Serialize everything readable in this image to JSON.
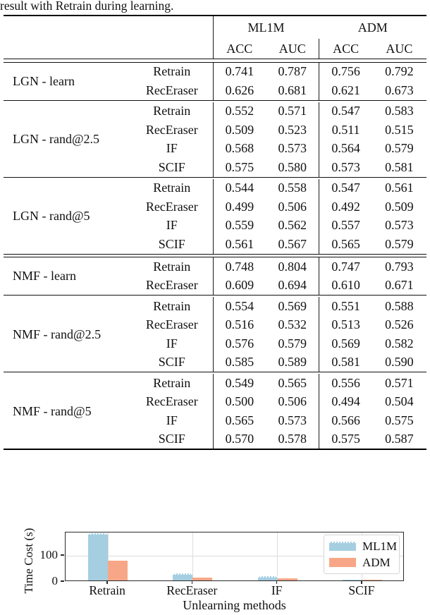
{
  "caption": "result with Retrain during learning.",
  "table": {
    "col_groups": [
      {
        "label": "ML1M"
      },
      {
        "label": "ADM"
      }
    ],
    "sub_headers": [
      "ACC",
      "AUC",
      "ACC",
      "AUC"
    ],
    "groups": [
      {
        "label": "LGN - learn",
        "rows": [
          {
            "method": "Retrain",
            "values": [
              "0.741",
              "0.787",
              "0.756",
              "0.792"
            ]
          },
          {
            "method": "RecEraser",
            "values": [
              "0.626",
              "0.681",
              "0.621",
              "0.673"
            ]
          }
        ]
      },
      {
        "label": "LGN - rand@2.5",
        "rows": [
          {
            "method": "Retrain",
            "values": [
              "0.552",
              "0.571",
              "0.547",
              "0.583"
            ]
          },
          {
            "method": "RecEraser",
            "values": [
              "0.509",
              "0.523",
              "0.511",
              "0.515"
            ]
          },
          {
            "method": "IF",
            "values": [
              "0.568",
              "0.573",
              "0.564",
              "0.579"
            ]
          },
          {
            "method": "SCIF",
            "values": [
              "0.575",
              "0.580",
              "0.573",
              "0.581"
            ]
          }
        ]
      },
      {
        "label": "LGN - rand@5",
        "rows": [
          {
            "method": "Retrain",
            "values": [
              "0.544",
              "0.558",
              "0.547",
              "0.561"
            ]
          },
          {
            "method": "RecEraser",
            "values": [
              "0.499",
              "0.506",
              "0.492",
              "0.509"
            ]
          },
          {
            "method": "IF",
            "values": [
              "0.559",
              "0.562",
              "0.557",
              "0.573"
            ]
          },
          {
            "method": "SCIF",
            "values": [
              "0.561",
              "0.567",
              "0.565",
              "0.579"
            ]
          }
        ]
      },
      {
        "label": "NMF - learn",
        "rows": [
          {
            "method": "Retrain",
            "values": [
              "0.748",
              "0.804",
              "0.747",
              "0.793"
            ]
          },
          {
            "method": "RecEraser",
            "values": [
              "0.609",
              "0.694",
              "0.610",
              "0.671"
            ]
          }
        ]
      },
      {
        "label": "NMF - rand@2.5",
        "rows": [
          {
            "method": "Retrain",
            "values": [
              "0.554",
              "0.569",
              "0.551",
              "0.588"
            ]
          },
          {
            "method": "RecEraser",
            "values": [
              "0.516",
              "0.532",
              "0.513",
              "0.526"
            ]
          },
          {
            "method": "IF",
            "values": [
              "0.576",
              "0.579",
              "0.569",
              "0.582"
            ]
          },
          {
            "method": "SCIF",
            "values": [
              "0.585",
              "0.589",
              "0.581",
              "0.590"
            ]
          }
        ]
      },
      {
        "label": "NMF - rand@5",
        "rows": [
          {
            "method": "Retrain",
            "values": [
              "0.549",
              "0.565",
              "0.556",
              "0.571"
            ]
          },
          {
            "method": "RecEraser",
            "values": [
              "0.500",
              "0.506",
              "0.494",
              "0.504"
            ]
          },
          {
            "method": "IF",
            "values": [
              "0.565",
              "0.573",
              "0.566",
              "0.575"
            ]
          },
          {
            "method": "SCIF",
            "values": [
              "0.570",
              "0.578",
              "0.575",
              "0.587"
            ]
          }
        ]
      }
    ]
  },
  "chart_data": {
    "type": "bar",
    "categories": [
      "Retrain",
      "RecEraser",
      "IF",
      "SCIF"
    ],
    "series": [
      {
        "name": "ML1M",
        "color": "#a5cee1",
        "values": [
          181,
          28,
          17,
          3
        ]
      },
      {
        "name": "ADM",
        "color": "#f7a787",
        "values": [
          75,
          12,
          8,
          2
        ]
      }
    ],
    "xlabel": "Unlearning methods",
    "ylabel": "Time Cost (s)",
    "yticks": [
      0,
      100
    ],
    "ylim": [
      0,
      190
    ],
    "grid": true,
    "legend_position": "upper right"
  }
}
